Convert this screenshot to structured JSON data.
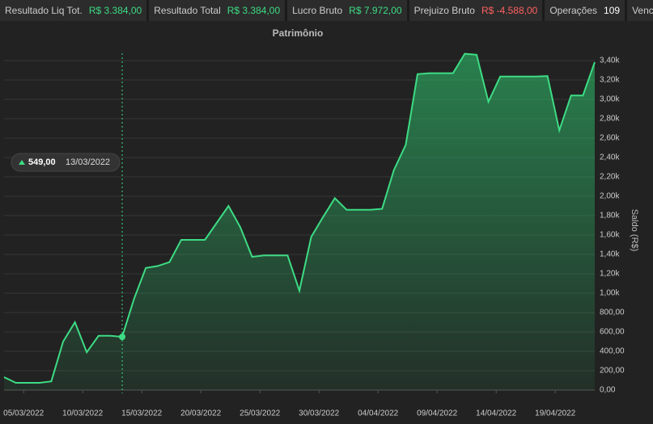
{
  "stats": [
    {
      "label": "Resultado Liq Tot.",
      "value": "R$ 3.384,00",
      "color": "#3ddc84"
    },
    {
      "label": "Resultado Total",
      "value": "R$ 3.384,00",
      "color": "#3ddc84"
    },
    {
      "label": "Lucro Bruto",
      "value": "R$ 7.972,00",
      "color": "#3ddc84"
    },
    {
      "label": "Prejuizo Bruto",
      "value": "R$ -4.588,00",
      "color": "#ff6060"
    },
    {
      "label": "Operações",
      "value": "109",
      "color": "#ffffff"
    },
    {
      "label": "Vencedoras",
      "value": null,
      "color": "#3ddc84"
    }
  ],
  "chart_data": {
    "type": "area",
    "title": "Patrimônio",
    "y_label": "Saldo (R$)",
    "x": [
      "03/03/2022",
      "04/03/2022",
      "05/03/2022",
      "06/03/2022",
      "07/03/2022",
      "08/03/2022",
      "09/03/2022",
      "10/03/2022",
      "11/03/2022",
      "12/03/2022",
      "13/03/2022",
      "14/03/2022",
      "15/03/2022",
      "16/03/2022",
      "17/03/2022",
      "18/03/2022",
      "19/03/2022",
      "20/03/2022",
      "21/03/2022",
      "22/03/2022",
      "23/03/2022",
      "24/03/2022",
      "25/03/2022",
      "26/03/2022",
      "27/03/2022",
      "28/03/2022",
      "29/03/2022",
      "30/03/2022",
      "31/03/2022",
      "01/04/2022",
      "02/04/2022",
      "03/04/2022",
      "04/04/2022",
      "05/04/2022",
      "06/04/2022",
      "07/04/2022",
      "08/04/2022",
      "09/04/2022",
      "10/04/2022",
      "11/04/2022",
      "12/04/2022",
      "13/04/2022",
      "14/04/2022",
      "15/04/2022",
      "16/04/2022",
      "17/04/2022",
      "18/04/2022",
      "19/04/2022",
      "20/04/2022",
      "21/04/2022",
      "22/04/2022"
    ],
    "series": [
      {
        "name": "Saldo",
        "color": "#3ddc84",
        "values": [
          133,
          75,
          75,
          75,
          90,
          500,
          700,
          390,
          560,
          560,
          549,
          940,
          1260,
          1280,
          1320,
          1550,
          1550,
          1550,
          1725,
          1900,
          1680,
          1375,
          1390,
          1390,
          1390,
          1025,
          1580,
          1785,
          1980,
          1860,
          1860,
          1860,
          1870,
          2270,
          2530,
          3260,
          3270,
          3270,
          3270,
          3470,
          3460,
          2975,
          3235,
          3235,
          3235,
          3235,
          3240,
          2680,
          3040,
          3040,
          3384
        ]
      }
    ],
    "xlim": [
      "03/03/2022",
      "22/04/2022"
    ],
    "xticks": [
      "05/03/2022",
      "10/03/2022",
      "15/03/2022",
      "20/03/2022",
      "25/03/2022",
      "30/03/2022",
      "04/04/2022",
      "09/04/2022",
      "14/04/2022",
      "19/04/2022"
    ],
    "ylim": [
      0,
      3525
    ],
    "yticks": [
      {
        "value": 0,
        "label": "0,00"
      },
      {
        "value": 200,
        "label": "200,00"
      },
      {
        "value": 400,
        "label": "400,00"
      },
      {
        "value": 600,
        "label": "600,00"
      },
      {
        "value": 800,
        "label": "800,00"
      },
      {
        "value": 1000,
        "label": "1,00k"
      },
      {
        "value": 1200,
        "label": "1,20k"
      },
      {
        "value": 1400,
        "label": "1,40k"
      },
      {
        "value": 1600,
        "label": "1,60k"
      },
      {
        "value": 1800,
        "label": "1,80k"
      },
      {
        "value": 2000,
        "label": "2,00k"
      },
      {
        "value": 2200,
        "label": "2,20k"
      },
      {
        "value": 2400,
        "label": "2,40k"
      },
      {
        "value": 2600,
        "label": "2,60k"
      },
      {
        "value": 2800,
        "label": "2,80k"
      },
      {
        "value": 3000,
        "label": "3,00k"
      },
      {
        "value": 3200,
        "label": "3,20k"
      },
      {
        "value": 3400,
        "label": "3,40k"
      }
    ],
    "grid": true,
    "tooltip": {
      "index": 10,
      "label": "549,00",
      "x": "13/03/2022"
    }
  }
}
